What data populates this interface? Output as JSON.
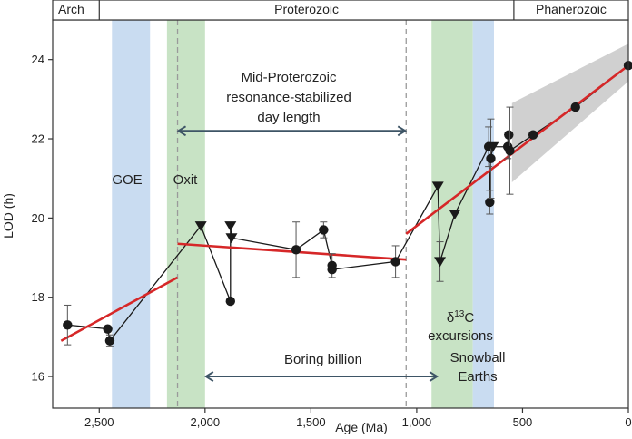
{
  "chart_data": {
    "type": "scatter",
    "xlabel": "Age (Ma)",
    "ylabel": "LOD (h)",
    "xlim": [
      2720,
      0
    ],
    "ylim": [
      15.2,
      25
    ],
    "x_ticks": [
      {
        "value": 2500,
        "label": "2,500"
      },
      {
        "value": 2000,
        "label": "2,000"
      },
      {
        "value": 1500,
        "label": "1,500"
      },
      {
        "value": 1000,
        "label": "1,000"
      },
      {
        "value": 500,
        "label": "500"
      },
      {
        "value": 0,
        "label": "0"
      }
    ],
    "y_ticks": [
      {
        "value": 16,
        "label": "16"
      },
      {
        "value": 18,
        "label": "18"
      },
      {
        "value": 20,
        "label": "20"
      },
      {
        "value": 22,
        "label": "22"
      },
      {
        "value": 24,
        "label": "24"
      }
    ],
    "eras": [
      {
        "label": "Arch",
        "from": 2720,
        "to": 2500
      },
      {
        "label": "Proterozoic",
        "from": 2500,
        "to": 541
      },
      {
        "label": "Phanerozoic",
        "from": 541,
        "to": 0
      }
    ],
    "bands": [
      {
        "name": "GOE",
        "from": 2440,
        "to": 2260,
        "color": "#c9dcf1"
      },
      {
        "name": "Oxit",
        "from": 2180,
        "to": 2000,
        "color": "#c8e3c5"
      },
      {
        "name": "δ13C excursions",
        "from": 930,
        "to": 735,
        "color": "#c8e3c5"
      },
      {
        "name": "Snowball Earths",
        "from": 735,
        "to": 635,
        "color": "#c9dcf1"
      }
    ],
    "dashed_lines": [
      2130,
      1050
    ],
    "points": [
      {
        "x": 2650,
        "y": 17.3,
        "err": 0.5,
        "marker": "circle"
      },
      {
        "x": 2460,
        "y": 17.2,
        "err": 0,
        "marker": "circle"
      },
      {
        "x": 2450,
        "y": 16.9,
        "err": 0.15,
        "marker": "circle"
      },
      {
        "x": 2020,
        "y": 19.8,
        "err": 0,
        "marker": "triangle"
      },
      {
        "x": 1880,
        "y": 17.9,
        "err": 0,
        "marker": "circle"
      },
      {
        "x": 1880,
        "y": 19.8,
        "err": 0,
        "marker": "triangle"
      },
      {
        "x": 1875,
        "y": 19.5,
        "err": 0,
        "marker": "triangle"
      },
      {
        "x": 1570,
        "y": 19.2,
        "err": 0.7,
        "marker": "circle"
      },
      {
        "x": 1440,
        "y": 19.7,
        "err": 0.2,
        "marker": "circle"
      },
      {
        "x": 1400,
        "y": 18.8,
        "err": 0.3,
        "marker": "circle"
      },
      {
        "x": 1400,
        "y": 18.7,
        "err": 0,
        "marker": "circle"
      },
      {
        "x": 1100,
        "y": 18.9,
        "err": 0.4,
        "marker": "circle"
      },
      {
        "x": 900,
        "y": 20.8,
        "err": 0,
        "marker": "triangle"
      },
      {
        "x": 890,
        "y": 18.9,
        "err": 0.5,
        "marker": "triangle"
      },
      {
        "x": 820,
        "y": 20.1,
        "err": 0,
        "marker": "triangle"
      },
      {
        "x": 660,
        "y": 21.8,
        "err": 0.5,
        "marker": "circle"
      },
      {
        "x": 655,
        "y": 20.4,
        "err": 0.3,
        "marker": "circle"
      },
      {
        "x": 650,
        "y": 21.5,
        "err": 1.0,
        "marker": "circle"
      },
      {
        "x": 640,
        "y": 21.8,
        "err": 0,
        "marker": "triangle"
      },
      {
        "x": 570,
        "y": 21.8,
        "err": 0.3,
        "marker": "circle"
      },
      {
        "x": 565,
        "y": 22.1,
        "err": 0,
        "marker": "circle"
      },
      {
        "x": 560,
        "y": 21.7,
        "err": 1.1,
        "marker": "circle"
      },
      {
        "x": 450,
        "y": 22.1,
        "err": 0,
        "marker": "circle"
      },
      {
        "x": 250,
        "y": 22.8,
        "err": 0,
        "marker": "circle"
      },
      {
        "x": 0,
        "y": 23.85,
        "err": 0,
        "marker": "circle"
      }
    ],
    "connector_order": [
      0,
      1,
      2,
      3,
      4,
      5,
      6,
      7,
      8,
      9,
      10,
      11,
      12,
      13,
      14,
      15,
      16,
      17,
      18,
      19,
      20,
      21,
      22,
      23,
      24
    ],
    "fit_lines": [
      {
        "x": [
          2680,
          2130
        ],
        "y": [
          16.9,
          18.5
        ],
        "color": "#d62728"
      },
      {
        "x": [
          2130,
          1050
        ],
        "y": [
          19.35,
          18.95
        ],
        "color": "#d62728"
      },
      {
        "x": [
          1050,
          0
        ],
        "y": [
          19.6,
          23.85
        ],
        "color": "#d62728"
      }
    ],
    "confidence_band": {
      "x": [
        550,
        0
      ],
      "lower": [
        20.9,
        23.45
      ],
      "upper": [
        22.9,
        24.4
      ],
      "color": "#c8c8c8"
    },
    "annotations": {
      "mid_proterozoic_lines": [
        "Mid-Proterozoic",
        "resonance-stabilized",
        "day length"
      ],
      "mid_arrow": {
        "from": 2130,
        "to": 1050,
        "y": 22.2
      },
      "boring_label": "Boring billion",
      "boring_arrow": {
        "from": 2000,
        "to": 900,
        "y": 16
      },
      "goe": "GOE",
      "oxit": "Oxit",
      "d13c_prefix": "δ",
      "d13c_sup": "13",
      "d13c_suffix": "C",
      "excursions": "excursions",
      "snowball_1": "Snowball",
      "snowball_2": "Earths"
    },
    "colors": {
      "marker": "#1a1a1a",
      "arrow": "#3e5566",
      "fit": "#d62728",
      "dashed": "#9a9a9a"
    }
  }
}
